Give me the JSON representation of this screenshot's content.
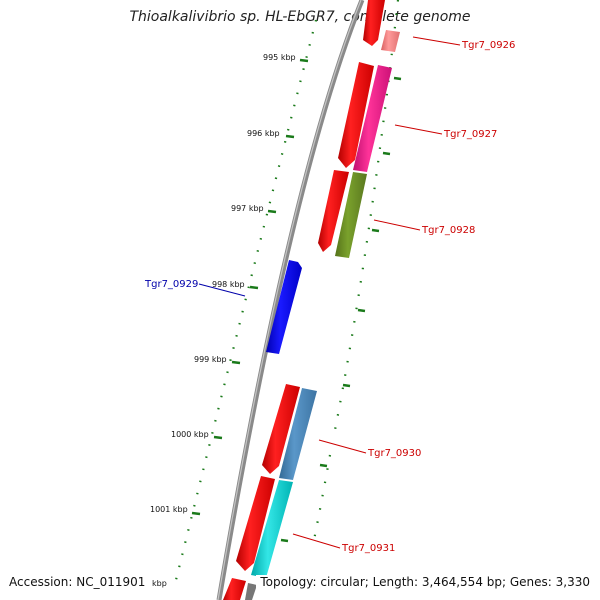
{
  "header": {
    "title": "Thioalkalivibrio sp. HL-EbGR7, complete genome"
  },
  "footer": {
    "accession": "Accession: NC_011901",
    "summary": "Topology: circular; Length: 3,464,554 bp; Genes: 3,330"
  },
  "scale_labels": [
    "995 kbp",
    "996 kbp",
    "997 kbp",
    "998 kbp",
    "999 kbp",
    "1000 kbp",
    "1001 kbp",
    "kbp"
  ],
  "gene_labels": [
    {
      "text": "Tgr7_0926",
      "color": "#cc0000"
    },
    {
      "text": "Tgr7_0927",
      "color": "#cc0000"
    },
    {
      "text": "Tgr7_0928",
      "color": "#cc0000"
    },
    {
      "text": "Tgr7_0929",
      "color": "#0000aa"
    },
    {
      "text": "Tgr7_0930",
      "color": "#cc0000"
    },
    {
      "text": "Tgr7_0931",
      "color": "#cc0000"
    }
  ],
  "colors": {
    "backbone": "#8a8a8a",
    "tick": "#1a7a1a",
    "cds": "#ff0000",
    "reverse_gene": "#0000ee",
    "cog_pink": "#ee2288",
    "cog_olive": "#6b8e23",
    "cog_steelblue": "#4682b4",
    "cog_cyan": "#00c8c8",
    "cog_lightred": "#f08080"
  }
}
